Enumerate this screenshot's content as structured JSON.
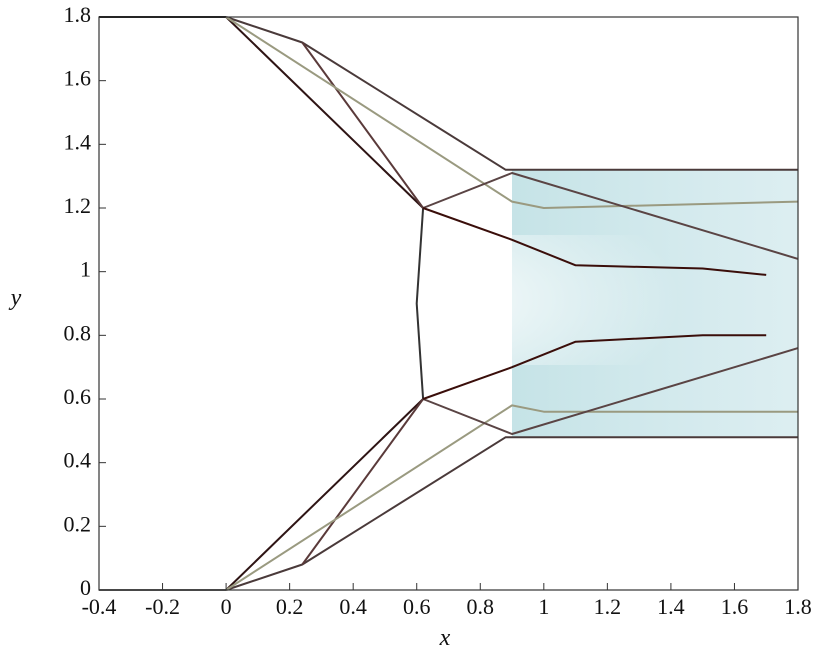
{
  "chart_data": {
    "type": "line",
    "x_label": "x",
    "y_label": "y",
    "xlim": [
      -0.4,
      1.8
    ],
    "ylim": [
      0,
      1.8
    ],
    "xticks": [
      -0.4,
      -0.2,
      0,
      0.2,
      0.4,
      0.6,
      0.8,
      1,
      1.2,
      1.4,
      1.6,
      1.8
    ],
    "yticks": [
      0,
      0.2,
      0.4,
      0.6,
      0.8,
      1,
      1.2,
      1.4,
      1.6,
      1.8
    ],
    "series": [
      {
        "color": "#111111",
        "x": [
          -0.4,
          0
        ],
        "values": [
          1.8,
          1.8
        ]
      },
      {
        "color": "#666666",
        "x": [
          -0.4,
          0
        ],
        "values": [
          0,
          0
        ]
      },
      {
        "color": "#4a3a3a",
        "x": [
          0,
          0.24,
          0.88,
          1.8
        ],
        "values": [
          1.8,
          1.72,
          1.32,
          1.32
        ]
      },
      {
        "color": "#4a3a3a",
        "x": [
          0,
          0.24,
          0.88,
          1.8
        ],
        "values": [
          0,
          0.08,
          0.48,
          0.48
        ]
      },
      {
        "color": "#2e1414",
        "x": [
          0,
          0.62
        ],
        "values": [
          1.8,
          1.2
        ]
      },
      {
        "color": "#333333",
        "x": [
          0.62,
          0.6,
          0.62
        ],
        "values": [
          1.2,
          0.9,
          0.6
        ]
      },
      {
        "color": "#2e1414",
        "x": [
          0.62,
          0
        ],
        "values": [
          0.6,
          0
        ]
      },
      {
        "color": "#5a3a3a",
        "x": [
          0.24,
          0.62
        ],
        "values": [
          1.72,
          1.2
        ]
      },
      {
        "color": "#5a3a3a",
        "x": [
          0.24,
          0.62
        ],
        "values": [
          0.08,
          0.6
        ]
      },
      {
        "color": "#9a9a80",
        "x": [
          0,
          0.9,
          1.0,
          1.8
        ],
        "values": [
          1.8,
          1.22,
          1.2,
          1.22
        ]
      },
      {
        "color": "#9a9a80",
        "x": [
          0,
          0.9,
          1.0,
          1.8
        ],
        "values": [
          0,
          0.58,
          0.56,
          0.56
        ]
      },
      {
        "color": "#5a4444",
        "x": [
          0.62,
          0.9,
          1.8
        ],
        "values": [
          1.2,
          1.31,
          1.04
        ]
      },
      {
        "color": "#5a4444",
        "x": [
          0.62,
          0.9,
          1.8
        ],
        "values": [
          0.6,
          0.49,
          0.76
        ]
      },
      {
        "color": "#3a0e0a",
        "x": [
          0.62,
          0.9,
          1.1,
          1.5,
          1.7
        ],
        "values": [
          1.2,
          1.1,
          1.02,
          1.01,
          0.99
        ]
      },
      {
        "color": "#3a0e0a",
        "x": [
          0.62,
          0.9,
          1.1,
          1.5,
          1.7
        ],
        "values": [
          0.6,
          0.7,
          0.78,
          0.8,
          0.8
        ]
      }
    ]
  }
}
